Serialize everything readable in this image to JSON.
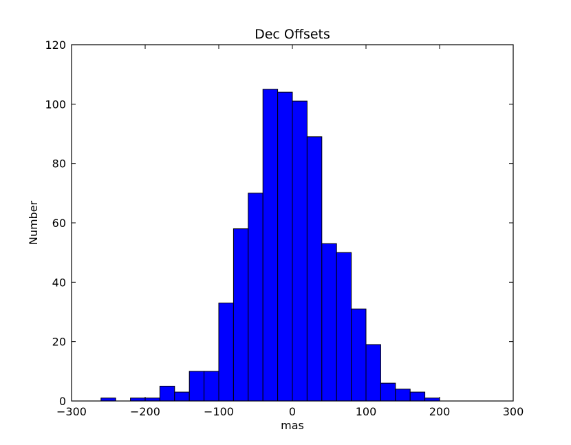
{
  "chart_data": {
    "type": "bar",
    "title": "Dec Offsets",
    "xlabel": "mas",
    "ylabel": "Number",
    "xlim": [
      -300,
      300
    ],
    "ylim": [
      0,
      120
    ],
    "x_ticks": [
      -300,
      -200,
      -100,
      0,
      100,
      200,
      300
    ],
    "y_ticks": [
      0,
      20,
      40,
      60,
      80,
      100,
      120
    ],
    "x_tick_labels": [
      "−300",
      "−200",
      "−100",
      "0",
      "100",
      "200",
      "300"
    ],
    "y_tick_labels": [
      "0",
      "20",
      "40",
      "60",
      "80",
      "100",
      "120"
    ],
    "bin_edges": [
      -260,
      -240,
      -220,
      -200,
      -180,
      -160,
      -140,
      -120,
      -100,
      -80,
      -60,
      -40,
      -20,
      0,
      20,
      40,
      60,
      80,
      100,
      120,
      140,
      160,
      180,
      200
    ],
    "values": [
      1,
      0,
      1,
      1,
      5,
      3,
      10,
      10,
      33,
      58,
      70,
      105,
      104,
      101,
      89,
      53,
      50,
      31,
      19,
      6,
      4,
      3,
      1
    ],
    "bar_color": "#0000ff",
    "edge_color": "#000000",
    "grid": false
  }
}
